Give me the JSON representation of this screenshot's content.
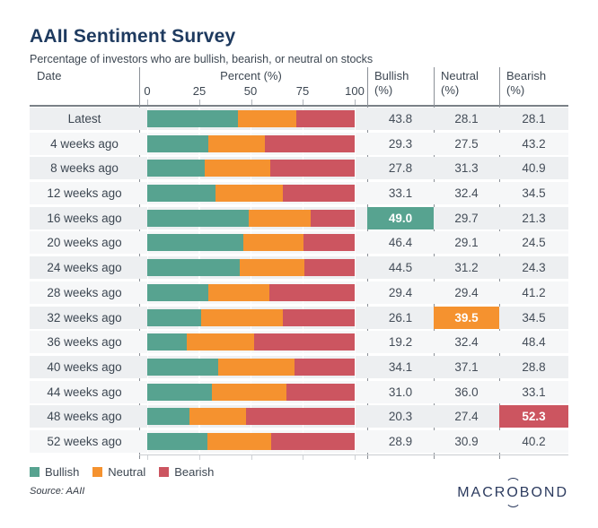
{
  "title": "AAII Sentiment Survey",
  "subtitle": "Percentage of investors who are bullish, bearish, or neutral on stocks",
  "colors": {
    "bullish": "#57a390",
    "neutral": "#f5922f",
    "bearish": "#cc5560",
    "navy": "#1e3a5f",
    "slate": "#3d4752"
  },
  "table": {
    "date_header": "Date",
    "chart_header": "Percent (%)",
    "axis_ticks": [
      "0",
      "25",
      "50",
      "75",
      "100"
    ],
    "value_headers": [
      {
        "name": "Bullish",
        "unit": "(%)"
      },
      {
        "name": "Neutral",
        "unit": "(%)"
      },
      {
        "name": "Bearish",
        "unit": "(%)"
      }
    ],
    "rows": [
      {
        "date": "Latest",
        "bullish": "43.8",
        "neutral": "28.1",
        "bearish": "28.1"
      },
      {
        "date": "4 weeks ago",
        "bullish": "29.3",
        "neutral": "27.5",
        "bearish": "43.2"
      },
      {
        "date": "8 weeks ago",
        "bullish": "27.8",
        "neutral": "31.3",
        "bearish": "40.9"
      },
      {
        "date": "12 weeks ago",
        "bullish": "33.1",
        "neutral": "32.4",
        "bearish": "34.5"
      },
      {
        "date": "16 weeks ago",
        "bullish": "49.0",
        "neutral": "29.7",
        "bearish": "21.3",
        "highlight": "bullish"
      },
      {
        "date": "20 weeks ago",
        "bullish": "46.4",
        "neutral": "29.1",
        "bearish": "24.5"
      },
      {
        "date": "24 weeks ago",
        "bullish": "44.5",
        "neutral": "31.2",
        "bearish": "24.3"
      },
      {
        "date": "28 weeks ago",
        "bullish": "29.4",
        "neutral": "29.4",
        "bearish": "41.2"
      },
      {
        "date": "32 weeks ago",
        "bullish": "26.1",
        "neutral": "39.5",
        "bearish": "34.5",
        "highlight": "neutral"
      },
      {
        "date": "36 weeks ago",
        "bullish": "19.2",
        "neutral": "32.4",
        "bearish": "48.4"
      },
      {
        "date": "40 weeks ago",
        "bullish": "34.1",
        "neutral": "37.1",
        "bearish": "28.8"
      },
      {
        "date": "44 weeks ago",
        "bullish": "31.0",
        "neutral": "36.0",
        "bearish": "33.1"
      },
      {
        "date": "48 weeks ago",
        "bullish": "20.3",
        "neutral": "27.4",
        "bearish": "52.3",
        "highlight": "bearish"
      },
      {
        "date": "52 weeks ago",
        "bullish": "28.9",
        "neutral": "30.9",
        "bearish": "40.2"
      }
    ]
  },
  "chart_data": {
    "type": "bar",
    "orientation": "horizontal-stacked",
    "title": "AAII Sentiment Survey",
    "subtitle": "Percentage of investors who are bullish, bearish, or neutral on stocks",
    "categories": [
      "Latest",
      "4 weeks ago",
      "8 weeks ago",
      "12 weeks ago",
      "16 weeks ago",
      "20 weeks ago",
      "24 weeks ago",
      "28 weeks ago",
      "32 weeks ago",
      "36 weeks ago",
      "40 weeks ago",
      "44 weeks ago",
      "48 weeks ago",
      "52 weeks ago"
    ],
    "series": [
      {
        "name": "Bullish",
        "color": "#57a390",
        "values": [
          43.8,
          29.3,
          27.8,
          33.1,
          49.0,
          46.4,
          44.5,
          29.4,
          26.1,
          19.2,
          34.1,
          31.0,
          20.3,
          28.9
        ]
      },
      {
        "name": "Neutral",
        "color": "#f5922f",
        "values": [
          28.1,
          27.5,
          31.3,
          32.4,
          29.7,
          29.1,
          31.2,
          29.4,
          39.5,
          32.4,
          37.1,
          36.0,
          27.4,
          30.9
        ]
      },
      {
        "name": "Bearish",
        "color": "#cc5560",
        "values": [
          28.1,
          43.2,
          40.9,
          34.5,
          21.3,
          24.5,
          24.3,
          41.2,
          34.5,
          48.4,
          28.8,
          33.1,
          52.3,
          40.2
        ]
      }
    ],
    "xlabel": "Percent (%)",
    "xlim": [
      0,
      100
    ],
    "xticks": [
      0,
      25,
      50,
      75,
      100
    ],
    "grid": true,
    "legend_position": "bottom",
    "highlights": [
      {
        "category": "16 weeks ago",
        "series": "Bullish",
        "value": 49.0
      },
      {
        "category": "32 weeks ago",
        "series": "Neutral",
        "value": 39.5
      },
      {
        "category": "48 weeks ago",
        "series": "Bearish",
        "value": 52.3
      }
    ],
    "source": "AAII"
  },
  "legend": {
    "items": [
      {
        "label": "Bullish"
      },
      {
        "label": "Neutral"
      },
      {
        "label": "Bearish"
      }
    ]
  },
  "source": "Source: AAII",
  "logo": {
    "pre": "MACR",
    "o": "O",
    "post": "BOND"
  }
}
